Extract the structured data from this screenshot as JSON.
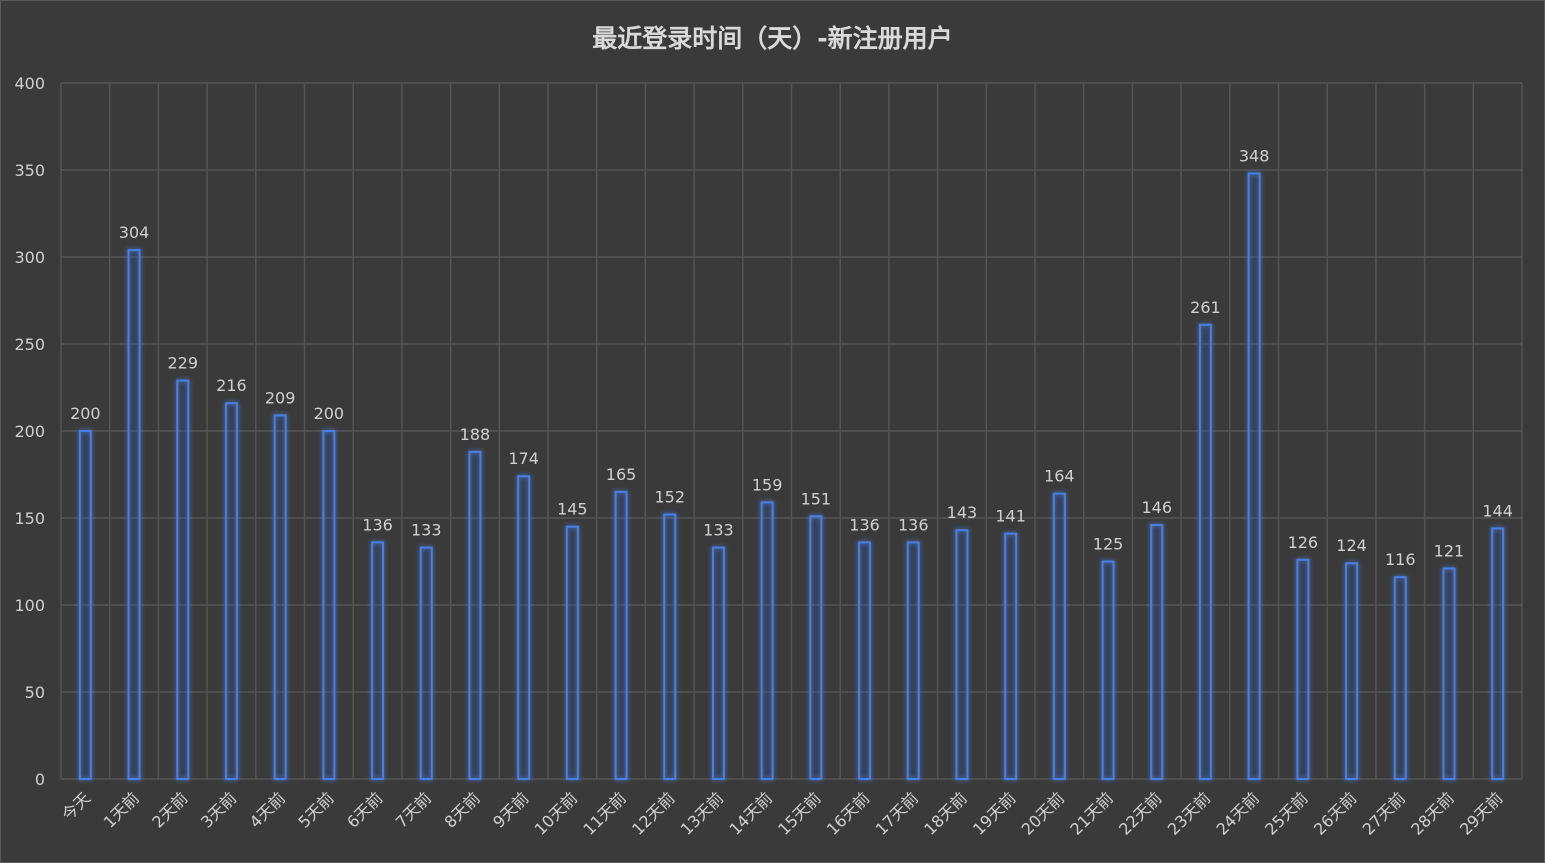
{
  "chart_data": {
    "type": "bar",
    "title": "最近登录时间（天）-新注册用户",
    "categories": [
      "今天",
      "1天前",
      "2天前",
      "3天前",
      "4天前",
      "5天前",
      "6天前",
      "7天前",
      "8天前",
      "9天前",
      "10天前",
      "11天前",
      "12天前",
      "13天前",
      "14天前",
      "15天前",
      "16天前",
      "17天前",
      "18天前",
      "19天前",
      "20天前",
      "21天前",
      "22天前",
      "23天前",
      "24天前",
      "25天前",
      "26天前",
      "27天前",
      "28天前",
      "29天前"
    ],
    "values": [
      200,
      304,
      229,
      216,
      209,
      200,
      136,
      133,
      188,
      174,
      145,
      165,
      152,
      133,
      159,
      151,
      136,
      136,
      143,
      141,
      164,
      125,
      146,
      261,
      348,
      126,
      124,
      116,
      121,
      144
    ],
    "ylim": [
      0,
      400
    ],
    "yticks": [
      0,
      50,
      100,
      150,
      200,
      250,
      300,
      350,
      400
    ],
    "grid": true,
    "legend": "none",
    "xlabel": "",
    "ylabel": "",
    "colors": {
      "background": "#3a3a3a",
      "grid": "#555555",
      "bar_stroke": "#4a7fe0",
      "bar_glow": "#2f5cc8",
      "text": "#d0d0d0"
    }
  }
}
